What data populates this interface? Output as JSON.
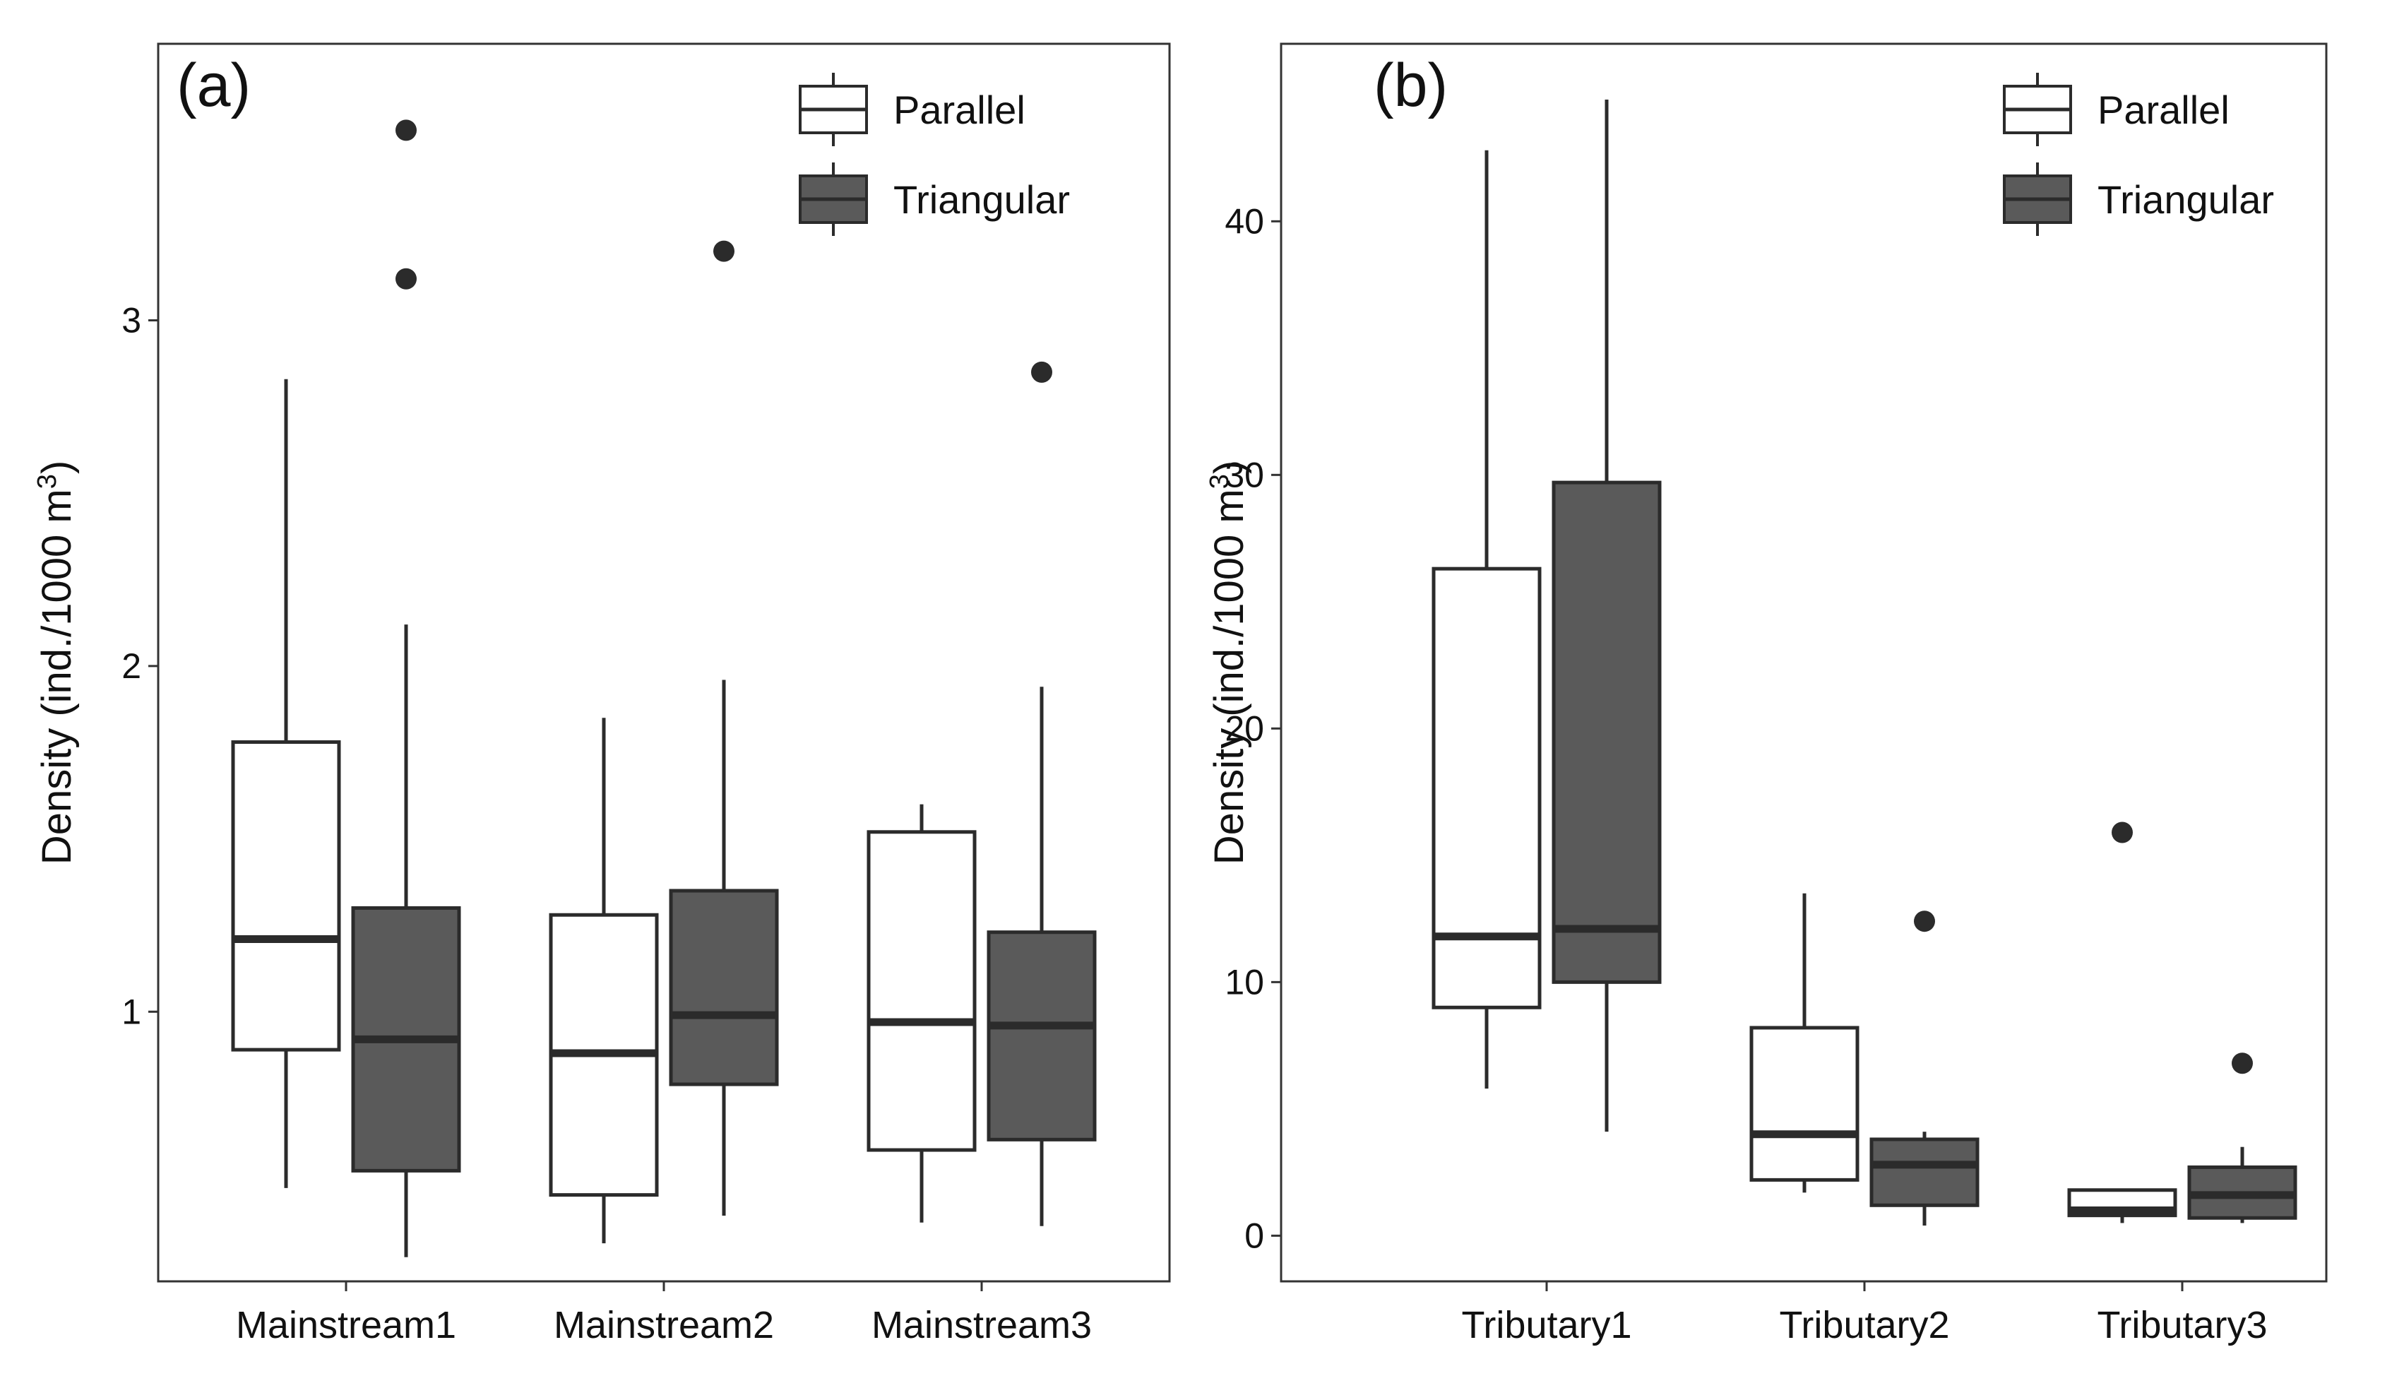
{
  "chart_data": [
    {
      "type": "box",
      "panel_label": "(a)",
      "ylabel": "Density (ind./1000 m",
      "ylabel_superscript": "3",
      "ylabel_close": ")",
      "ylim": [
        0.22,
        3.8
      ],
      "yticks": [
        1,
        2,
        3
      ],
      "categories": [
        "Mainstream1",
        "Mainstream2",
        "Mainstream3"
      ],
      "legend": {
        "position": "top-right",
        "entries": [
          {
            "name": "Parallel",
            "fill": "#ffffff"
          },
          {
            "name": "Triangular",
            "fill": "#5a5a5a"
          }
        ]
      },
      "series": [
        {
          "name": "Parallel",
          "fill": "#ffffff",
          "boxes": [
            {
              "category": "Mainstream1",
              "whisker_low": 0.49,
              "q1": 0.89,
              "median": 1.21,
              "q3": 1.78,
              "whisker_high": 2.83,
              "outliers": []
            },
            {
              "category": "Mainstream2",
              "whisker_low": 0.33,
              "q1": 0.47,
              "median": 0.88,
              "q3": 1.28,
              "whisker_high": 1.85,
              "outliers": []
            },
            {
              "category": "Mainstream3",
              "whisker_low": 0.39,
              "q1": 0.6,
              "median": 0.97,
              "q3": 1.52,
              "whisker_high": 1.6,
              "outliers": []
            }
          ]
        },
        {
          "name": "Triangular",
          "fill": "#5a5a5a",
          "boxes": [
            {
              "category": "Mainstream1",
              "whisker_low": 0.29,
              "q1": 0.54,
              "median": 0.92,
              "q3": 1.3,
              "whisker_high": 2.12,
              "outliers": [
                3.12,
                3.55
              ]
            },
            {
              "category": "Mainstream2",
              "whisker_low": 0.41,
              "q1": 0.79,
              "median": 0.99,
              "q3": 1.35,
              "whisker_high": 1.96,
              "outliers": [
                3.2
              ]
            },
            {
              "category": "Mainstream3",
              "whisker_low": 0.38,
              "q1": 0.63,
              "median": 0.96,
              "q3": 1.23,
              "whisker_high": 1.94,
              "outliers": [
                2.85
              ]
            }
          ]
        }
      ]
    },
    {
      "type": "box",
      "panel_label": "(b)",
      "ylabel": "Density (ind./1000 m",
      "ylabel_superscript": "3",
      "ylabel_close": ")",
      "ylim": [
        -1.8,
        47.0
      ],
      "yticks": [
        0,
        10,
        20,
        30,
        40
      ],
      "categories": [
        "Tributary1",
        "Tributary2",
        "Tributary3"
      ],
      "legend": {
        "position": "top-right",
        "entries": [
          {
            "name": "Parallel",
            "fill": "#ffffff"
          },
          {
            "name": "Triangular",
            "fill": "#5a5a5a"
          }
        ]
      },
      "series": [
        {
          "name": "Parallel",
          "fill": "#ffffff",
          "boxes": [
            {
              "category": "Tributary1",
              "whisker_low": 5.8,
              "q1": 9.0,
              "median": 11.8,
              "q3": 26.3,
              "whisker_high": 42.8,
              "outliers": []
            },
            {
              "category": "Tributary2",
              "whisker_low": 1.7,
              "q1": 2.2,
              "median": 4.0,
              "q3": 8.2,
              "whisker_high": 13.5,
              "outliers": []
            },
            {
              "category": "Tributary3",
              "whisker_low": 0.5,
              "q1": 0.8,
              "median": 1.0,
              "q3": 1.8,
              "whisker_high": 1.8,
              "outliers": [
                15.9
              ]
            }
          ]
        },
        {
          "name": "Triangular",
          "fill": "#5a5a5a",
          "boxes": [
            {
              "category": "Tributary1",
              "whisker_low": 4.1,
              "q1": 10.0,
              "median": 12.1,
              "q3": 29.7,
              "whisker_high": 44.8,
              "outliers": []
            },
            {
              "category": "Tributary2",
              "whisker_low": 0.4,
              "q1": 1.2,
              "median": 2.8,
              "q3": 3.8,
              "whisker_high": 4.1,
              "outliers": [
                12.4
              ]
            },
            {
              "category": "Tributary3",
              "whisker_low": 0.5,
              "q1": 0.7,
              "median": 1.6,
              "q3": 2.7,
              "whisker_high": 3.5,
              "outliers": [
                6.8
              ]
            }
          ]
        }
      ]
    }
  ]
}
